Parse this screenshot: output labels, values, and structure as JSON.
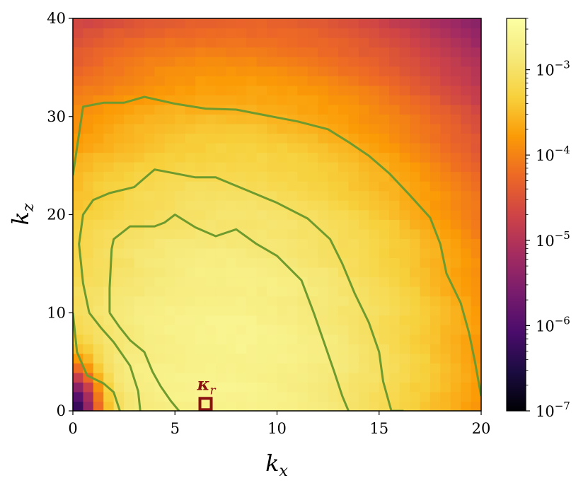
{
  "chart_data": {
    "type": "heatmap",
    "title": "",
    "xlabel": {
      "base": "k",
      "sub": "x"
    },
    "ylabel": {
      "base": "k",
      "sub": "z"
    },
    "xlim": [
      0,
      20
    ],
    "ylim": [
      0,
      40
    ],
    "x_ticks": [
      "0",
      "5",
      "10",
      "15",
      "20"
    ],
    "y_ticks": [
      "0",
      "10",
      "20",
      "30",
      "40"
    ],
    "colorbar": {
      "scale": "log",
      "range": [
        1e-07,
        0.004
      ],
      "colormap": "inferno",
      "ticks": [
        {
          "value": 1e-07,
          "base": "10",
          "exp": "−7"
        },
        {
          "value": 1e-06,
          "base": "10",
          "exp": "−6"
        },
        {
          "value": 1e-05,
          "base": "10",
          "exp": "−5"
        },
        {
          "value": 0.0001,
          "base": "10",
          "exp": "−4"
        },
        {
          "value": 0.001,
          "base": "10",
          "exp": "−3"
        }
      ]
    },
    "contours": {
      "color": "#6f9a2e",
      "levels": [
        [
          [
            0,
            24
          ],
          [
            0.5,
            31
          ],
          [
            1.5,
            31.4
          ],
          [
            2.5,
            31.4
          ],
          [
            3.5,
            32
          ],
          [
            5,
            31.3
          ],
          [
            6.5,
            30.8
          ],
          [
            8,
            30.7
          ],
          [
            9.5,
            30.1
          ],
          [
            11,
            29.5
          ],
          [
            12.5,
            28.7
          ],
          [
            13.5,
            27.4
          ],
          [
            14.5,
            26
          ],
          [
            15.5,
            24.2
          ],
          [
            16.5,
            22
          ],
          [
            17.5,
            19.7
          ],
          [
            18,
            17
          ],
          [
            18.3,
            14
          ],
          [
            19,
            11
          ],
          [
            19.4,
            8
          ],
          [
            19.7,
            5
          ],
          [
            20,
            1.5
          ]
        ],
        [
          [
            0,
            10
          ],
          [
            0.2,
            6
          ],
          [
            0.7,
            3.6
          ],
          [
            1.5,
            2.8
          ],
          [
            2,
            1.9
          ],
          [
            2.3,
            0
          ]
        ],
        [
          [
            0.8,
            10
          ],
          [
            0.5,
            13
          ],
          [
            0.3,
            17
          ],
          [
            0.5,
            20
          ],
          [
            1,
            21.5
          ],
          [
            1.8,
            22.2
          ],
          [
            3,
            22.8
          ],
          [
            4,
            24.6
          ],
          [
            5,
            24.2
          ],
          [
            6,
            23.8
          ],
          [
            7,
            23.8
          ],
          [
            8.5,
            22.5
          ],
          [
            10,
            21.2
          ],
          [
            11.5,
            19.6
          ],
          [
            12.6,
            17.5
          ],
          [
            13.2,
            15
          ],
          [
            13.8,
            12
          ],
          [
            14.5,
            9
          ],
          [
            15,
            6
          ],
          [
            15.2,
            3
          ],
          [
            15.6,
            0
          ],
          [
            16.2,
            0
          ]
        ],
        [
          [
            1.8,
            10
          ],
          [
            1.8,
            12.5
          ],
          [
            1.9,
            16.5
          ],
          [
            2,
            17.5
          ],
          [
            2.8,
            18.8
          ],
          [
            4,
            18.8
          ],
          [
            4.5,
            19.2
          ],
          [
            5,
            20
          ],
          [
            6,
            18.7
          ],
          [
            7,
            17.8
          ],
          [
            8,
            18.5
          ],
          [
            9,
            17
          ],
          [
            10,
            15.8
          ],
          [
            11.2,
            13.3
          ],
          [
            11.8,
            10
          ],
          [
            12.3,
            7
          ],
          [
            12.8,
            4
          ],
          [
            13.2,
            1.5
          ],
          [
            13.5,
            0
          ]
        ],
        [
          [
            0.8,
            10
          ],
          [
            1.4,
            8.4
          ],
          [
            2,
            7
          ],
          [
            2.8,
            4.6
          ],
          [
            3.2,
            2
          ],
          [
            3.3,
            0
          ]
        ],
        [
          [
            1.8,
            10
          ],
          [
            2.3,
            8.5
          ],
          [
            2.8,
            7.2
          ],
          [
            3.5,
            6
          ],
          [
            3.9,
            4
          ],
          [
            4.3,
            2.5
          ],
          [
            4.8,
            1
          ],
          [
            5.2,
            0
          ]
        ]
      ]
    },
    "annotation": {
      "label": "κ",
      "sub": "r",
      "x": 6.5,
      "y": 0.7
    }
  }
}
